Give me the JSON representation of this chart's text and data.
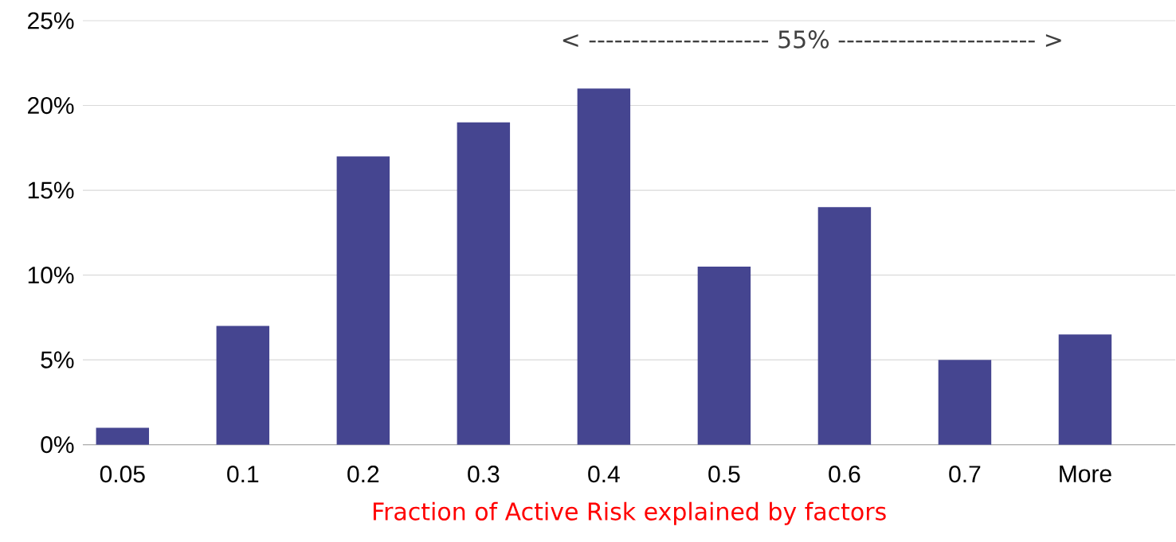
{
  "chart_data": {
    "type": "bar",
    "xlabel": "Fraction of Active Risk explained by factors",
    "categories": [
      "0.05",
      "0.1",
      "0.2",
      "0.3",
      "0.4",
      "0.5",
      "0.6",
      "0.7",
      "More"
    ],
    "values": [
      1,
      7,
      17,
      19,
      21,
      10.5,
      14,
      5,
      6.5
    ],
    "color": "#454590",
    "ylim": [
      0,
      25
    ],
    "yticks": [
      {
        "value": 0,
        "label": "0%"
      },
      {
        "value": 5,
        "label": "5%"
      },
      {
        "value": 10,
        "label": "10%"
      },
      {
        "value": 15,
        "label": "15%"
      },
      {
        "value": 20,
        "label": "20%"
      },
      {
        "value": 25,
        "label": "25%"
      }
    ],
    "grid": "y",
    "annotations": [
      "< --------------------- 55% ----------------------- >"
    ]
  }
}
